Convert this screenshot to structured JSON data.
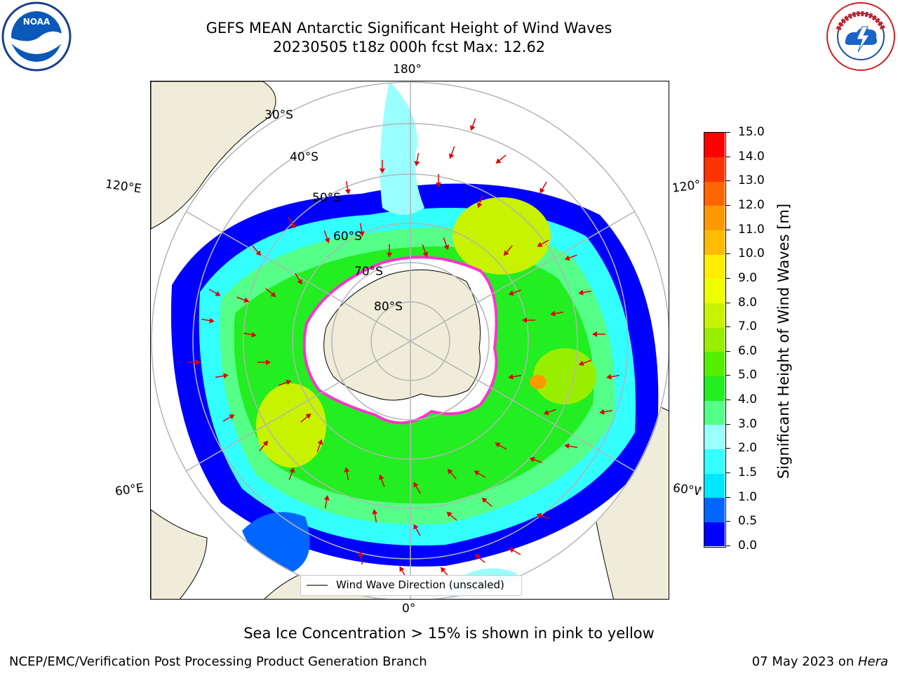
{
  "title": {
    "line1": "GEFS MEAN Antarctic Significant Height of Wind Waves",
    "line2": "20230505 t18z 000h fcst   Max: 12.62"
  },
  "map": {
    "longitude_labels": {
      "top": "180°",
      "bottom": "0°",
      "upper_left": "120°E",
      "upper_right": "120°",
      "lower_left": "60°E",
      "lower_right": "60°W"
    },
    "latitude_labels": [
      "30°S",
      "40°S",
      "50°S",
      "60°S",
      "70°S",
      "80°S"
    ],
    "legend_entry": "Wind Wave Direction (unscaled)",
    "land_color": "#efedd9",
    "arrow_color": "#e00000"
  },
  "colorbar": {
    "label": "Significant Height of Wind Waves [m]",
    "ticks": [
      "0.0",
      "0.5",
      "1.0",
      "1.5",
      "2.0",
      "3.0",
      "4.0",
      "5.0",
      "6.0",
      "7.0",
      "8.0",
      "9.0",
      "10.0",
      "11.0",
      "12.0",
      "13.0",
      "14.0",
      "15.0"
    ],
    "colors": [
      "#0000ff",
      "#0066ff",
      "#00e6ff",
      "#33ffff",
      "#99ffff",
      "#55ff88",
      "#22ee22",
      "#55ee00",
      "#99ee00",
      "#c8f200",
      "#eeff00",
      "#ffee00",
      "#ffbb00",
      "#ff9900",
      "#ff6600",
      "#ff3300",
      "#ff0000"
    ]
  },
  "subtitle": "Sea Ice Concentration > 15% is shown in pink to yellow",
  "footer": {
    "left": "NCEP/EMC/Verification Post Processing Product Generation Branch",
    "right_date": "07 May 2023 on ",
    "right_host": "Hera"
  },
  "logos": {
    "noaa_text": "NOAA",
    "nws_text": "NATIONAL WEATHER SERVICE"
  }
}
